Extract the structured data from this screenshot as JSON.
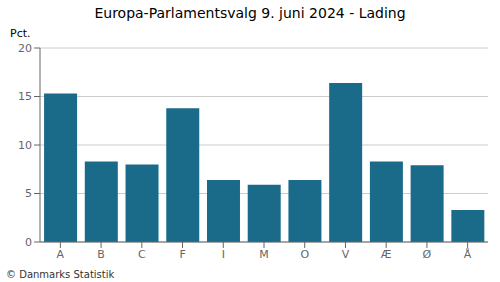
{
  "chart_data": {
    "type": "bar",
    "title": "Europa-Parlamentsvalg 9. juni 2024 - Lading",
    "ylabel": "Pct.",
    "annotations": [
      "© Danmarks Statistik"
    ],
    "categories": [
      "A",
      "B",
      "C",
      "F",
      "I",
      "M",
      "O",
      "V",
      "Æ",
      "Ø",
      "Å"
    ],
    "values": [
      15.3,
      8.3,
      8.0,
      13.8,
      6.4,
      5.9,
      6.4,
      16.4,
      8.3,
      7.9,
      3.3
    ],
    "color": "#1a6b8a",
    "ylim": [
      0,
      20
    ],
    "yticks": [
      0,
      5,
      10,
      15,
      20
    ],
    "grid": true
  }
}
